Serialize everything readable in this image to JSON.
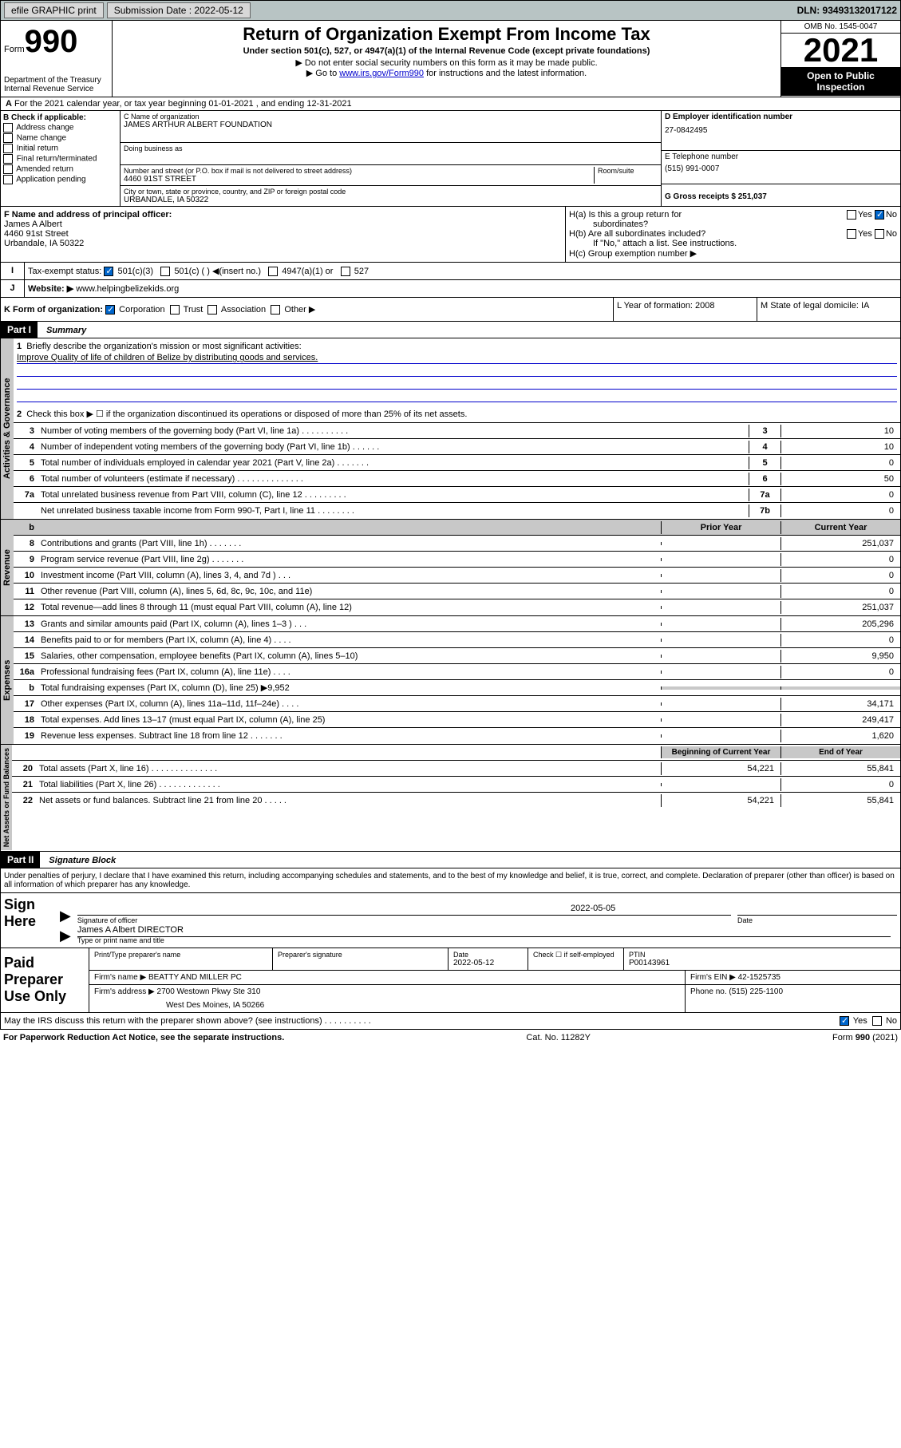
{
  "topbar": {
    "efile": "efile GRAPHIC print",
    "submission_label": "Submission Date : 2022-05-12",
    "dln": "DLN: 93493132017122"
  },
  "header": {
    "form_label": "Form",
    "form_number": "990",
    "dept": "Department of the Treasury",
    "irs": "Internal Revenue Service",
    "title": "Return of Organization Exempt From Income Tax",
    "subtitle": "Under section 501(c), 527, or 4947(a)(1) of the Internal Revenue Code (except private foundations)",
    "arrow1": "▶ Do not enter social security numbers on this form as it may be made public.",
    "arrow2_pre": "▶ Go to ",
    "arrow2_link": "www.irs.gov/Form990",
    "arrow2_post": " for instructions and the latest information.",
    "omb": "OMB No. 1545-0047",
    "year": "2021",
    "open_public": "Open to Public Inspection"
  },
  "row_a": "For the 2021 calendar year, or tax year beginning 01-01-2021    , and ending 12-31-2021",
  "section_b": {
    "label": "B Check if applicable:",
    "items": [
      "Address change",
      "Name change",
      "Initial return",
      "Final return/terminated",
      "Amended return",
      "Application pending"
    ]
  },
  "section_c": {
    "name_label": "C Name of organization",
    "name": "JAMES ARTHUR ALBERT FOUNDATION",
    "dba_label": "Doing business as",
    "addr_label": "Number and street (or P.O. box if mail is not delivered to street address)",
    "room_label": "Room/suite",
    "addr": "4460 91ST STREET",
    "city_label": "City or town, state or province, country, and ZIP or foreign postal code",
    "city": "URBANDALE, IA  50322"
  },
  "section_d": {
    "ein_label": "D Employer identification number",
    "ein": "27-0842495",
    "phone_label": "E Telephone number",
    "phone": "(515) 991-0007",
    "receipts_label": "G Gross receipts $ 251,037"
  },
  "section_f": {
    "label": "F  Name and address of principal officer:",
    "name": "James A Albert",
    "addr1": "4460 91st Street",
    "addr2": "Urbandale, IA  50322"
  },
  "section_h": {
    "ha_label": "H(a)  Is this a group return for",
    "ha_sub": "subordinates?",
    "hb_label": "H(b)  Are all subordinates included?",
    "hb_note": "If \"No,\" attach a list. See instructions.",
    "hc_label": "H(c)  Group exemption number ▶",
    "yes": "Yes",
    "no": "No"
  },
  "section_i": {
    "label": "Tax-exempt status:",
    "opt1": "501(c)(3)",
    "opt2": "501(c) (  ) ◀(insert no.)",
    "opt3": "4947(a)(1) or",
    "opt4": "527"
  },
  "section_j": {
    "label": "Website: ▶",
    "value": "www.helpingbelizekids.org"
  },
  "section_k": {
    "label": "K Form of organization:",
    "opts": [
      "Corporation",
      "Trust",
      "Association",
      "Other ▶"
    ]
  },
  "section_l": "L Year of formation: 2008",
  "section_m": "M State of legal domicile: IA",
  "part1": {
    "header": "Part I",
    "title": "Summary",
    "q1_label": "Briefly describe the organization's mission or most significant activities:",
    "q1_text": "Improve Quality of life of children of Belize by distributing goods and services.",
    "q2": "Check this box ▶ ☐  if the organization discontinued its operations or disposed of more than 25% of its net assets.",
    "sidebar_activities": "Activities & Governance",
    "sidebar_revenue": "Revenue",
    "sidebar_expenses": "Expenses",
    "sidebar_netassets": "Net Assets or Fund Balances",
    "prior_year": "Prior Year",
    "current_year": "Current Year",
    "begin_year": "Beginning of Current Year",
    "end_year": "End of Year"
  },
  "gov_rows": [
    {
      "n": "3",
      "d": "Number of voting members of the governing body (Part VI, line 1a)   .    .    .    .    .    .    .    .    .    .",
      "l": "3",
      "v": "10"
    },
    {
      "n": "4",
      "d": "Number of independent voting members of the governing body (Part VI, line 1b)   .    .    .    .    .    .",
      "l": "4",
      "v": "10"
    },
    {
      "n": "5",
      "d": "Total number of individuals employed in calendar year 2021 (Part V, line 2a)   .    .    .    .    .    .    .",
      "l": "5",
      "v": "0"
    },
    {
      "n": "6",
      "d": "Total number of volunteers (estimate if necessary)   .    .    .    .    .    .    .    .    .    .    .    .    .    .",
      "l": "6",
      "v": "50"
    },
    {
      "n": "7a",
      "d": "Total unrelated business revenue from Part VIII, column (C), line 12   .    .    .    .    .    .    .    .    .",
      "l": "7a",
      "v": "0"
    },
    {
      "n": "",
      "d": "Net unrelated business taxable income from Form 990-T, Part I, line 11   .    .    .    .    .    .    .    .",
      "l": "7b",
      "v": "0"
    }
  ],
  "rev_rows": [
    {
      "n": "8",
      "d": "Contributions and grants (Part VIII, line 1h)   .    .    .    .    .    .    .",
      "p": "",
      "c": "251,037"
    },
    {
      "n": "9",
      "d": "Program service revenue (Part VIII, line 2g)   .    .    .    .    .    .    .",
      "p": "",
      "c": "0"
    },
    {
      "n": "10",
      "d": "Investment income (Part VIII, column (A), lines 3, 4, and 7d )   .    .    .",
      "p": "",
      "c": "0"
    },
    {
      "n": "11",
      "d": "Other revenue (Part VIII, column (A), lines 5, 6d, 8c, 9c, 10c, and 11e)",
      "p": "",
      "c": "0"
    },
    {
      "n": "12",
      "d": "Total revenue—add lines 8 through 11 (must equal Part VIII, column (A), line 12)",
      "p": "",
      "c": "251,037"
    }
  ],
  "exp_rows": [
    {
      "n": "13",
      "d": "Grants and similar amounts paid (Part IX, column (A), lines 1–3 )   .    .    .",
      "p": "",
      "c": "205,296"
    },
    {
      "n": "14",
      "d": "Benefits paid to or for members (Part IX, column (A), line 4)   .    .    .    .",
      "p": "",
      "c": "0"
    },
    {
      "n": "15",
      "d": "Salaries, other compensation, employee benefits (Part IX, column (A), lines 5–10)",
      "p": "",
      "c": "9,950"
    },
    {
      "n": "16a",
      "d": "Professional fundraising fees (Part IX, column (A), line 11e)   .    .    .    .",
      "p": "",
      "c": "0"
    },
    {
      "n": "b",
      "d": "Total fundraising expenses (Part IX, column (D), line 25) ▶9,952",
      "p": "shaded",
      "c": "shaded"
    },
    {
      "n": "17",
      "d": "Other expenses (Part IX, column (A), lines 11a–11d, 11f–24e)   .    .    .    .",
      "p": "",
      "c": "34,171"
    },
    {
      "n": "18",
      "d": "Total expenses. Add lines 13–17 (must equal Part IX, column (A), line 25)",
      "p": "",
      "c": "249,417"
    },
    {
      "n": "19",
      "d": "Revenue less expenses. Subtract line 18 from line 12   .    .    .    .    .    .    .",
      "p": "",
      "c": "1,620"
    }
  ],
  "net_rows": [
    {
      "n": "20",
      "d": "Total assets (Part X, line 16)   .    .    .    .    .    .    .    .    .    .    .    .    .    .",
      "p": "54,221",
      "c": "55,841"
    },
    {
      "n": "21",
      "d": "Total liabilities (Part X, line 26)   .    .    .    .    .    .    .    .    .    .    .    .    .",
      "p": "",
      "c": "0"
    },
    {
      "n": "22",
      "d": "Net assets or fund balances. Subtract line 21 from line 20   .    .    .    .    .",
      "p": "54,221",
      "c": "55,841"
    }
  ],
  "part2": {
    "header": "Part II",
    "title": "Signature Block",
    "penalty": "Under penalties of perjury, I declare that I have examined this return, including accompanying schedules and statements, and to the best of my knowledge and belief, it is true, correct, and complete. Declaration of preparer (other than officer) is based on all information of which preparer has any knowledge."
  },
  "sign": {
    "label": "Sign Here",
    "sig_of": "Signature of officer",
    "date": "2022-05-05",
    "date_label": "Date",
    "name": "James A Albert  DIRECTOR",
    "name_label": "Type or print name and title"
  },
  "paid": {
    "label": "Paid Preparer Use Only",
    "col1": "Print/Type preparer's name",
    "col2": "Preparer's signature",
    "col3": "Date",
    "col3v": "2022-05-12",
    "col4": "Check ☐  if self-employed",
    "col5": "PTIN",
    "col5v": "P00143961",
    "firm_name_label": "Firm's name      ▶",
    "firm_name": "BEATTY AND MILLER PC",
    "firm_ein_label": "Firm's EIN ▶",
    "firm_ein": "42-1525735",
    "firm_addr_label": "Firm's address ▶",
    "firm_addr1": "2700 Westown Pkwy Ste 310",
    "firm_addr2": "West Des Moines, IA  50266",
    "phone_label": "Phone no.",
    "phone": "(515) 225-1100"
  },
  "footer": {
    "discuss": "May the IRS discuss this return with the preparer shown above? (see instructions)   .    .    .    .    .    .    .    .    .    .",
    "yes": "Yes",
    "no": "No",
    "paperwork": "For Paperwork Reduction Act Notice, see the separate instructions.",
    "cat": "Cat. No. 11282Y",
    "form": "Form 990 (2021)"
  }
}
